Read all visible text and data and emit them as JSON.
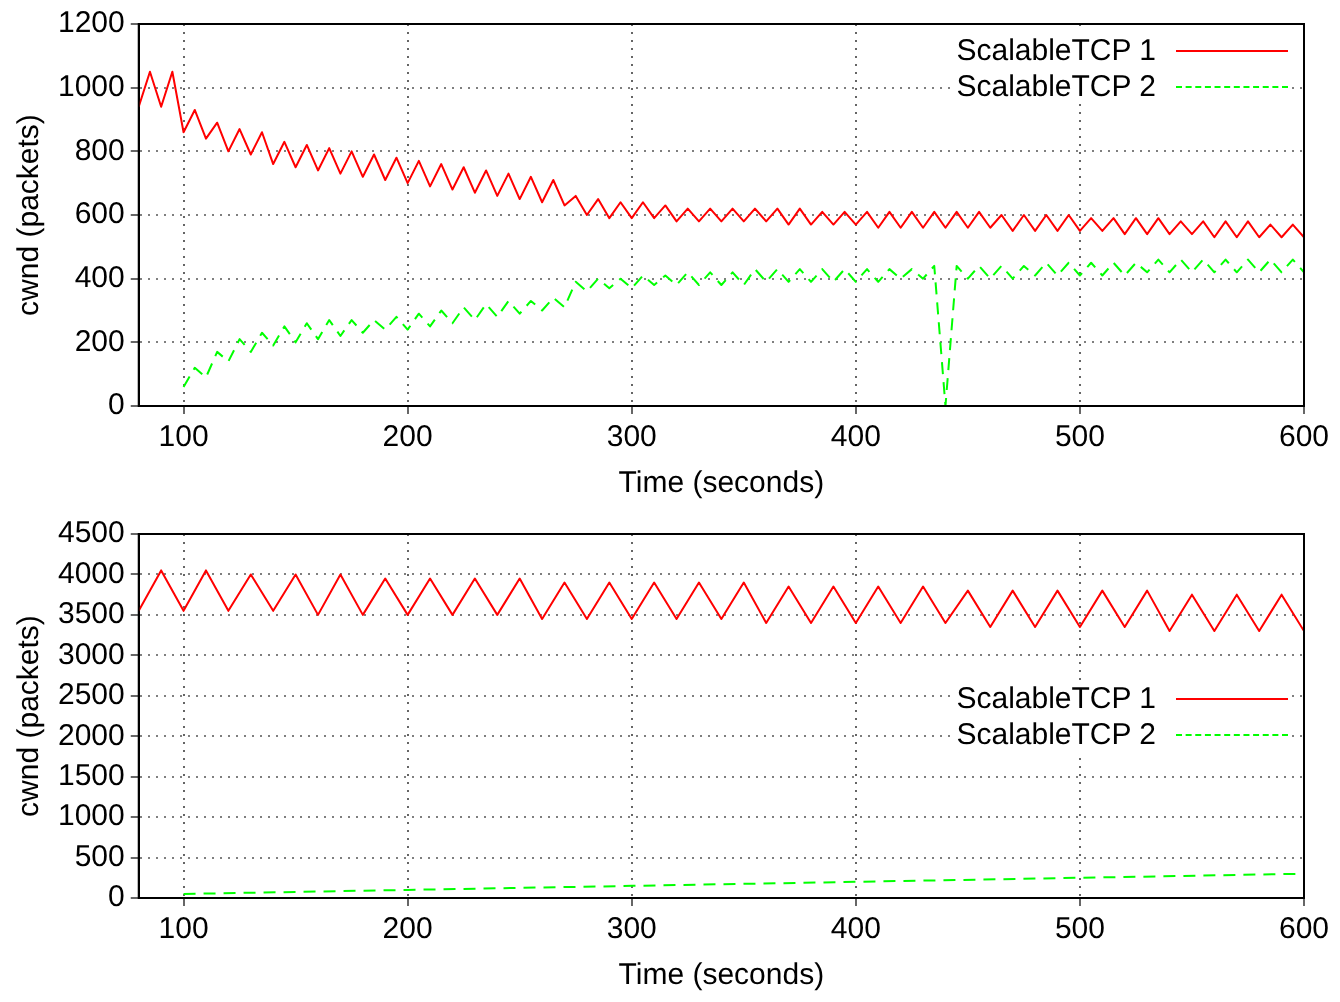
{
  "chart_data": [
    {
      "type": "line",
      "xlabel": "Time (seconds)",
      "ylabel": "cwnd (packets)",
      "xlim": [
        80,
        600
      ],
      "xticks": [
        100,
        200,
        300,
        400,
        500,
        600
      ],
      "ylim": [
        0,
        1200
      ],
      "yticks": [
        0,
        200,
        400,
        600,
        800,
        1000,
        1200
      ],
      "grid": true,
      "legend": "top right",
      "marker": "none",
      "series": [
        {
          "name": "ScalableTCP 1",
          "color": "#ff0000",
          "line_style": "solid",
          "x": [
            80,
            85,
            90,
            95,
            100,
            105,
            110,
            115,
            120,
            125,
            130,
            135,
            140,
            145,
            150,
            155,
            160,
            165,
            170,
            175,
            180,
            185,
            190,
            195,
            200,
            205,
            210,
            215,
            220,
            225,
            230,
            235,
            240,
            245,
            250,
            255,
            260,
            265,
            270,
            275,
            280,
            285,
            290,
            295,
            300,
            305,
            310,
            315,
            320,
            325,
            330,
            335,
            340,
            345,
            350,
            355,
            360,
            365,
            370,
            375,
            380,
            385,
            390,
            395,
            400,
            405,
            410,
            415,
            420,
            425,
            430,
            435,
            440,
            445,
            450,
            455,
            460,
            465,
            470,
            475,
            480,
            485,
            490,
            495,
            500,
            505,
            510,
            515,
            520,
            525,
            530,
            535,
            540,
            545,
            550,
            555,
            560,
            565,
            570,
            575,
            580,
            585,
            590,
            595,
            600
          ],
          "values": [
            940,
            1050,
            940,
            1050,
            860,
            930,
            840,
            890,
            800,
            870,
            790,
            860,
            760,
            830,
            750,
            820,
            740,
            810,
            730,
            800,
            720,
            790,
            710,
            780,
            700,
            770,
            690,
            760,
            680,
            750,
            670,
            740,
            660,
            730,
            650,
            720,
            640,
            710,
            630,
            660,
            600,
            650,
            590,
            640,
            590,
            640,
            590,
            630,
            580,
            620,
            580,
            620,
            580,
            620,
            580,
            620,
            580,
            620,
            570,
            620,
            570,
            610,
            570,
            610,
            570,
            610,
            560,
            610,
            560,
            610,
            560,
            610,
            560,
            610,
            560,
            610,
            560,
            600,
            550,
            600,
            550,
            600,
            550,
            600,
            550,
            590,
            550,
            590,
            540,
            590,
            540,
            590,
            540,
            580,
            540,
            580,
            530,
            580,
            530,
            580,
            530,
            570,
            530,
            570,
            530
          ]
        },
        {
          "name": "ScalableTCP 2",
          "color": "#00ff00",
          "line_style": "dashed",
          "x": [
            100,
            105,
            110,
            115,
            120,
            125,
            130,
            135,
            140,
            145,
            150,
            155,
            160,
            165,
            170,
            175,
            180,
            185,
            190,
            195,
            200,
            205,
            210,
            215,
            220,
            225,
            230,
            235,
            240,
            245,
            250,
            255,
            260,
            265,
            270,
            275,
            280,
            285,
            290,
            295,
            300,
            305,
            310,
            315,
            320,
            325,
            330,
            335,
            340,
            345,
            350,
            355,
            360,
            365,
            370,
            375,
            380,
            385,
            390,
            395,
            400,
            405,
            410,
            415,
            420,
            425,
            430,
            435,
            440,
            445,
            450,
            455,
            460,
            465,
            470,
            475,
            480,
            485,
            490,
            495,
            500,
            505,
            510,
            515,
            520,
            525,
            530,
            535,
            540,
            545,
            550,
            555,
            560,
            565,
            570,
            575,
            580,
            585,
            590,
            595,
            600
          ],
          "values": [
            60,
            120,
            90,
            170,
            140,
            210,
            170,
            230,
            190,
            250,
            200,
            260,
            210,
            270,
            220,
            270,
            230,
            270,
            240,
            280,
            240,
            290,
            250,
            300,
            260,
            310,
            270,
            320,
            280,
            330,
            290,
            330,
            300,
            340,
            310,
            390,
            360,
            400,
            370,
            400,
            370,
            410,
            380,
            410,
            380,
            420,
            380,
            420,
            380,
            420,
            380,
            430,
            390,
            430,
            390,
            430,
            390,
            430,
            390,
            430,
            390,
            430,
            390,
            430,
            400,
            430,
            400,
            440,
            0,
            440,
            400,
            440,
            400,
            440,
            400,
            440,
            410,
            450,
            410,
            450,
            410,
            450,
            410,
            450,
            410,
            450,
            420,
            460,
            420,
            460,
            420,
            460,
            420,
            460,
            420,
            460,
            420,
            460,
            420,
            460,
            420
          ]
        }
      ]
    },
    {
      "type": "line",
      "xlabel": "Time (seconds)",
      "ylabel": "cwnd (packets)",
      "xlim": [
        80,
        600
      ],
      "xticks": [
        100,
        200,
        300,
        400,
        500,
        600
      ],
      "ylim": [
        0,
        4500
      ],
      "yticks": [
        0,
        500,
        1000,
        1500,
        2000,
        2500,
        3000,
        3500,
        4000,
        4500
      ],
      "grid": true,
      "legend": "right",
      "marker": "none",
      "series": [
        {
          "name": "ScalableTCP 1",
          "color": "#ff0000",
          "line_style": "solid",
          "x": [
            80,
            90,
            100,
            110,
            120,
            130,
            140,
            150,
            160,
            170,
            180,
            190,
            200,
            210,
            220,
            230,
            240,
            250,
            260,
            270,
            280,
            290,
            300,
            310,
            320,
            330,
            340,
            350,
            360,
            370,
            380,
            390,
            400,
            410,
            420,
            430,
            440,
            450,
            460,
            470,
            480,
            490,
            500,
            510,
            520,
            530,
            540,
            550,
            560,
            570,
            580,
            590,
            600
          ],
          "values": [
            3550,
            4050,
            3550,
            4050,
            3550,
            4000,
            3550,
            4000,
            3500,
            4000,
            3500,
            3950,
            3500,
            3950,
            3500,
            3950,
            3500,
            3950,
            3450,
            3900,
            3450,
            3900,
            3450,
            3900,
            3450,
            3900,
            3450,
            3900,
            3400,
            3850,
            3400,
            3850,
            3400,
            3850,
            3400,
            3850,
            3400,
            3800,
            3350,
            3800,
            3350,
            3800,
            3350,
            3800,
            3350,
            3800,
            3300,
            3750,
            3300,
            3750,
            3300,
            3750,
            3300
          ]
        },
        {
          "name": "ScalableTCP 2",
          "color": "#00ff00",
          "line_style": "dashed",
          "x": [
            100,
            200,
            300,
            400,
            500,
            600
          ],
          "values": [
            50,
            100,
            150,
            200,
            250,
            300
          ]
        }
      ]
    }
  ]
}
